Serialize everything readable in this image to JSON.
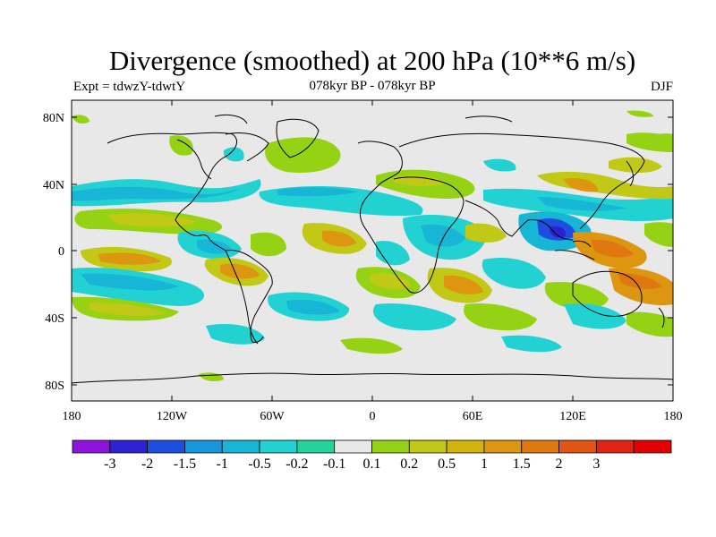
{
  "header": {
    "title": "Divergence (smoothed) at 200 hPa (10**6 m/s)",
    "experiment": "Expt = tdwzY-tdwtY",
    "period": "078kyr BP - 078kyr BP",
    "season": "DJF"
  },
  "map": {
    "background_color": "#e8e8e8",
    "coastline_color": "#000000",
    "lat_labels": [
      "80N",
      "40N",
      "0",
      "40S",
      "80S"
    ],
    "lon_labels": [
      "180",
      "120W",
      "60W",
      "0",
      "60E",
      "120E",
      "180"
    ]
  },
  "colorbar": {
    "colors": [
      "#8c14dc",
      "#2c22d4",
      "#1e4ee0",
      "#1896dc",
      "#18b6d6",
      "#22d2d2",
      "#22d49c",
      "#e8e8e8",
      "#96d214",
      "#c2c816",
      "#d2b40a",
      "#dc9610",
      "#e07810",
      "#e25414",
      "#e02414",
      "#e20000"
    ],
    "labels": [
      "-3",
      "-2",
      "-1.5",
      "-1",
      "-0.5",
      "-0.2",
      "-0.1",
      "0.1",
      "0.2",
      "0.5",
      "1",
      "1.5",
      "2",
      "3"
    ]
  }
}
